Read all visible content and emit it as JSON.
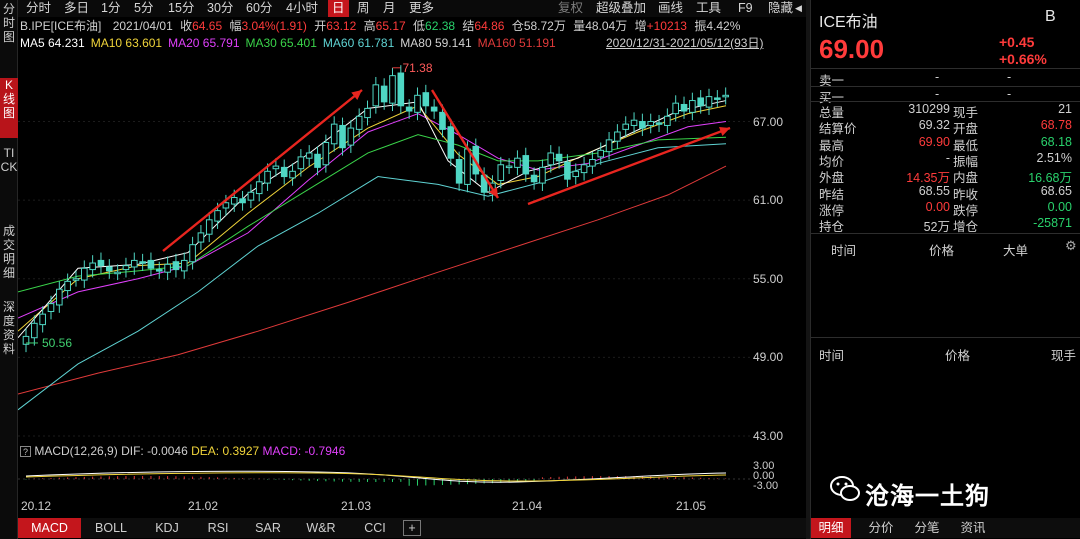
{
  "left_nav": [
    "分时图",
    "K线图",
    "TICK",
    "成交明细",
    "深度资料"
  ],
  "toolbar": {
    "items": [
      "分时",
      "多日",
      "1分",
      "5分",
      "15分",
      "30分",
      "60分",
      "4小时",
      "日",
      "周",
      "月",
      "更多"
    ],
    "active": "日",
    "right_items": [
      "复权",
      "超级叠加",
      "画线",
      "工具",
      "F9",
      "隐藏"
    ],
    "nav_arrows": [
      "◀",
      "▶"
    ]
  },
  "quote_line": {
    "symbol": "B.IPE[ICE布油]",
    "date": "2021/04/01",
    "close_label": "收",
    "close": "64.65",
    "change_label": "幅",
    "change": "3.04%(1.91)",
    "open_label": "开",
    "open": "63.12",
    "high_label": "高",
    "high": "65.17",
    "low_label": "低",
    "low": "62.38",
    "settle_label": "结",
    "settle": "64.86",
    "oi_label": "仓",
    "oi": "58.72万",
    "vol_label": "量",
    "vol": "48.04万",
    "add_label": "增",
    "add": "+10213",
    "amp_label": "振",
    "amp": "4.42%"
  },
  "ma_line": {
    "items": [
      {
        "label": "MA5",
        "value": "64.231",
        "color": "#ffffff"
      },
      {
        "label": "MA10",
        "value": "63.601",
        "color": "#f0d43a"
      },
      {
        "label": "MA20",
        "value": "65.791",
        "color": "#e040fb"
      },
      {
        "label": "MA30",
        "value": "65.401",
        "color": "#3ad34a"
      },
      {
        "label": "MA60",
        "value": "61.781",
        "color": "#5fd3d3"
      },
      {
        "label": "MA80",
        "value": "59.141",
        "color": "#d0d0d0"
      },
      {
        "label": "MA160",
        "value": "51.191",
        "color": "#e03a3a"
      }
    ],
    "range": "2020/12/31-2021/05/12(93日)"
  },
  "chart_data": {
    "type": "candlestick",
    "y_ticks": [
      "67.00",
      "61.00",
      "55.00",
      "49.00",
      "43.00"
    ],
    "ylim": [
      43,
      72
    ],
    "x_ticks": [
      "20.12",
      "21.02",
      "21.03",
      "21.04",
      "21.05"
    ],
    "high_annotation": "71.38",
    "low_annotation": "50.56",
    "macd_params": "MACD(12,26,9)",
    "dif_label": "DIF:",
    "dif": "-0.0046",
    "dea_label": "DEA:",
    "dea": "0.3927",
    "macd_label": "MACD:",
    "macd": "-0.7946",
    "macd_ticks": [
      "3.00",
      "0.00",
      "-3.00"
    ],
    "colors": {
      "up": "#4fd7c4",
      "down": "#4fd7c4",
      "arrow": "#e8251f"
    }
  },
  "indicator_tabs": [
    "MACD",
    "BOLL",
    "KDJ",
    "RSI",
    "SAR",
    "W&R",
    "CCI",
    "+"
  ],
  "indicator_active": "MACD",
  "right_panel": {
    "title": "ICE布油",
    "tag": "B",
    "price": "69.00",
    "change": "+0.45",
    "change_pct": "+0.66%",
    "sell_label": "卖一",
    "sell_v1": "-",
    "sell_v2": "-",
    "buy_label": "买一",
    "buy_v1": "-",
    "buy_v2": "-",
    "stats": [
      {
        "l1": "总量",
        "v1": "310299",
        "c1": "#d0d0d0",
        "l2": "现手",
        "v2": "21",
        "c2": "#d0d0d0"
      },
      {
        "l1": "结算价",
        "v1": "69.32",
        "c1": "#d0d0d0",
        "l2": "开盘",
        "v2": "68.78",
        "c2": "#ff3b3b"
      },
      {
        "l1": "最高",
        "v1": "69.90",
        "c1": "#ff3b3b",
        "l2": "最低",
        "v2": "68.18",
        "c2": "#29d26c"
      },
      {
        "l1": "均价",
        "v1": "-",
        "c1": "#d0d0d0",
        "l2": "振幅",
        "v2": "2.51%",
        "c2": "#d0d0d0"
      },
      {
        "l1": "外盘",
        "v1": "14.35万",
        "c1": "#ff3b3b",
        "l2": "内盘",
        "v2": "16.68万",
        "c2": "#29d26c"
      },
      {
        "l1": "昨结",
        "v1": "68.55",
        "c1": "#d0d0d0",
        "l2": "昨收",
        "v2": "68.65",
        "c2": "#d0d0d0"
      },
      {
        "l1": "涨停",
        "v1": "0.00",
        "c1": "#ff3b3b",
        "l2": "跌停",
        "v2": "0.00",
        "c2": "#29d26c"
      },
      {
        "l1": "持仓",
        "v1": "52万",
        "c1": "#d0d0d0",
        "l2": "增仓",
        "v2": "-25871",
        "c2": "#29d26c"
      }
    ],
    "trades_header": [
      "时间",
      "价格",
      "大单"
    ],
    "ticks_header": [
      "时间",
      "价格",
      "现手"
    ],
    "bottom_tabs": [
      "明细",
      "分价",
      "分笔",
      "资讯"
    ],
    "bottom_active": "明细"
  },
  "watermark": "沧海一土狗"
}
